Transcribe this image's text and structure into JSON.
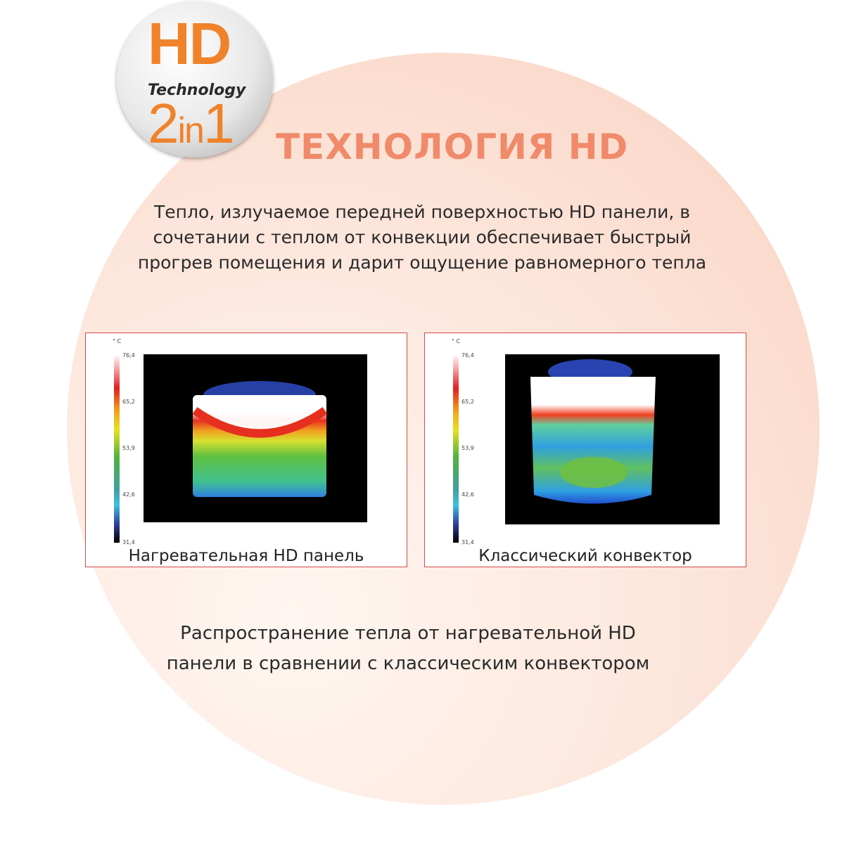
{
  "badge": {
    "hd": "HD",
    "technology": "Technology",
    "two": "2",
    "in": "in",
    "one": "1"
  },
  "title": "ТЕХНОЛОГИЯ HD",
  "intro": "Тепло, излучаемое передней поверхностью HD панели, в сочетании с теплом от конвекции обеспечивает быстрый прогрев помещения и дарит ощущение равномерного тепла",
  "thermal_scale": {
    "unit": "° C",
    "ticks": [
      "76,4",
      "65,2",
      "53,9",
      "42,6",
      "31,4"
    ]
  },
  "panels": [
    {
      "caption": "Нагревательная HD панель"
    },
    {
      "caption": "Классический конвектор"
    }
  ],
  "summary": "Распространение тепла от нагревательной HD панели в сравнении с классическим конвектором",
  "colors": {
    "accent": "#f0822a",
    "title": "#f08a6a",
    "panel_border": "#d34a4a"
  }
}
